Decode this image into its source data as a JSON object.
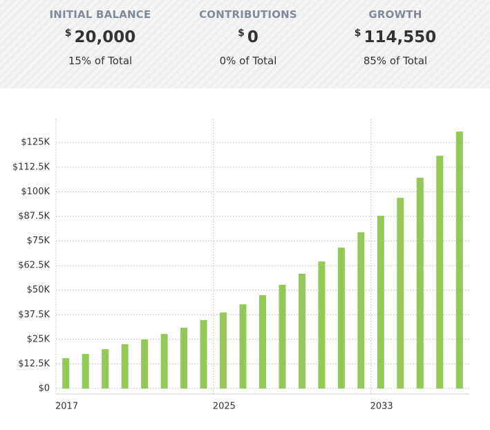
{
  "summary": [
    {
      "label": "INITIAL BALANCE",
      "currency": "$",
      "value": "20,000",
      "share": "15% of Total"
    },
    {
      "label": "CONTRIBUTIONS",
      "currency": "$",
      "value": "0",
      "share": "0% of Total"
    },
    {
      "label": "GROWTH",
      "currency": "$",
      "value": "114,550",
      "share": "85% of Total"
    }
  ],
  "chart_data": {
    "type": "bar",
    "color": "#92c957",
    "categories": [
      "2017",
      null,
      null,
      null,
      null,
      null,
      null,
      null,
      "2025",
      null,
      null,
      null,
      null,
      null,
      null,
      null,
      "2033",
      null,
      null,
      null,
      null
    ],
    "values": [
      15400,
      17600,
      20000,
      22500,
      24900,
      27700,
      30900,
      34800,
      38600,
      42800,
      47400,
      52700,
      58300,
      64600,
      71600,
      79400,
      87800,
      96900,
      107100,
      118300,
      130600
    ],
    "ylim": [
      0,
      133500
    ],
    "yticks": [
      {
        "value": 0,
        "label": "$0"
      },
      {
        "value": 12500,
        "label": "$12.5K"
      },
      {
        "value": 25000,
        "label": "$25K"
      },
      {
        "value": 37500,
        "label": "$37.5K"
      },
      {
        "value": 50000,
        "label": "$50K"
      },
      {
        "value": 62500,
        "label": "$62.5K"
      },
      {
        "value": 75000,
        "label": "$75K"
      },
      {
        "value": 87500,
        "label": "$87.5K"
      },
      {
        "value": 100000,
        "label": "$100K"
      },
      {
        "value": 112500,
        "label": "$112.5K"
      },
      {
        "value": 125000,
        "label": "$125K"
      }
    ],
    "grid": true
  }
}
